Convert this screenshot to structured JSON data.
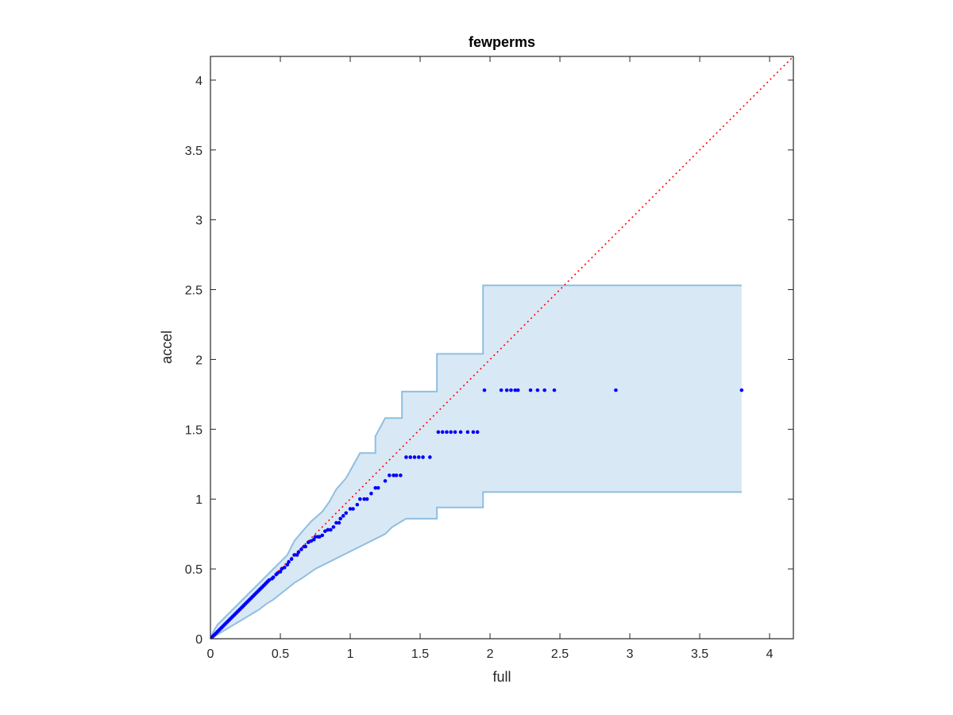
{
  "chart_data": {
    "type": "scatter",
    "title": "fewperms",
    "xlabel": "full",
    "ylabel": "accel",
    "xlim": [
      0,
      4.17
    ],
    "ylim": [
      0,
      4.17
    ],
    "xticks": [
      0,
      0.5,
      1,
      1.5,
      2,
      2.5,
      3,
      3.5,
      4
    ],
    "yticks": [
      0,
      0.5,
      1,
      1.5,
      2,
      2.5,
      3,
      3.5,
      4
    ],
    "xtick_labels": [
      "0",
      "0.5",
      "1",
      "1.5",
      "2",
      "2.5",
      "3",
      "3.5",
      "4"
    ],
    "ytick_labels": [
      "0",
      "0.5",
      "1",
      "1.5",
      "2",
      "2.5",
      "3",
      "3.5",
      "4"
    ],
    "grid": false,
    "colors": {
      "points": "#0000ff",
      "band_fill": "#d9e8f5",
      "band_edge": "#8fbfe0",
      "diagonal": "#ff0000",
      "axes": "#262626"
    },
    "diagonal": {
      "style": "dotted",
      "from": [
        0,
        0
      ],
      "to": [
        4.17,
        4.17
      ]
    },
    "band": {
      "upper": [
        [
          0,
          0
        ],
        [
          0.02,
          0.05
        ],
        [
          0.05,
          0.1
        ],
        [
          0.1,
          0.15
        ],
        [
          0.15,
          0.2
        ],
        [
          0.2,
          0.25
        ],
        [
          0.25,
          0.3
        ],
        [
          0.3,
          0.35
        ],
        [
          0.35,
          0.4
        ],
        [
          0.4,
          0.45
        ],
        [
          0.45,
          0.5
        ],
        [
          0.5,
          0.55
        ],
        [
          0.55,
          0.6
        ],
        [
          0.6,
          0.7
        ],
        [
          0.65,
          0.76
        ],
        [
          0.72,
          0.84
        ],
        [
          0.8,
          0.91
        ],
        [
          0.85,
          0.98
        ],
        [
          0.9,
          1.07
        ],
        [
          0.97,
          1.15
        ],
        [
          1.02,
          1.24
        ],
        [
          1.07,
          1.33
        ],
        [
          1.18,
          1.33
        ],
        [
          1.18,
          1.45
        ],
        [
          1.25,
          1.58
        ],
        [
          1.37,
          1.58
        ],
        [
          1.37,
          1.77
        ],
        [
          1.62,
          1.77
        ],
        [
          1.62,
          2.04
        ],
        [
          1.95,
          2.04
        ],
        [
          1.95,
          2.53
        ],
        [
          3.8,
          2.53
        ]
      ],
      "lower": [
        [
          0,
          0
        ],
        [
          0.05,
          0.03
        ],
        [
          0.1,
          0.06
        ],
        [
          0.15,
          0.09
        ],
        [
          0.2,
          0.12
        ],
        [
          0.25,
          0.15
        ],
        [
          0.3,
          0.18
        ],
        [
          0.35,
          0.21
        ],
        [
          0.4,
          0.25
        ],
        [
          0.45,
          0.28
        ],
        [
          0.5,
          0.32
        ],
        [
          0.55,
          0.36
        ],
        [
          0.6,
          0.4
        ],
        [
          0.65,
          0.43
        ],
        [
          0.75,
          0.5
        ],
        [
          0.85,
          0.55
        ],
        [
          0.95,
          0.6
        ],
        [
          1.05,
          0.65
        ],
        [
          1.15,
          0.7
        ],
        [
          1.25,
          0.75
        ],
        [
          1.3,
          0.8
        ],
        [
          1.4,
          0.86
        ],
        [
          1.62,
          0.86
        ],
        [
          1.62,
          0.94
        ],
        [
          1.95,
          0.94
        ],
        [
          1.95,
          1.05
        ],
        [
          3.8,
          1.05
        ]
      ]
    },
    "series": [
      {
        "points": [
          [
            0.01,
            0.01
          ],
          [
            0.02,
            0.02
          ],
          [
            0.03,
            0.03
          ],
          [
            0.04,
            0.04
          ],
          [
            0.05,
            0.05
          ],
          [
            0.06,
            0.06
          ],
          [
            0.07,
            0.07
          ],
          [
            0.08,
            0.08
          ],
          [
            0.09,
            0.09
          ],
          [
            0.1,
            0.1
          ],
          [
            0.11,
            0.11
          ],
          [
            0.12,
            0.12
          ],
          [
            0.13,
            0.13
          ],
          [
            0.14,
            0.14
          ],
          [
            0.15,
            0.15
          ],
          [
            0.16,
            0.16
          ],
          [
            0.17,
            0.17
          ],
          [
            0.18,
            0.18
          ],
          [
            0.19,
            0.19
          ],
          [
            0.2,
            0.2
          ],
          [
            0.21,
            0.21
          ],
          [
            0.22,
            0.22
          ],
          [
            0.23,
            0.23
          ],
          [
            0.24,
            0.24
          ],
          [
            0.25,
            0.25
          ],
          [
            0.26,
            0.26
          ],
          [
            0.27,
            0.27
          ],
          [
            0.28,
            0.28
          ],
          [
            0.29,
            0.29
          ],
          [
            0.3,
            0.3
          ],
          [
            0.31,
            0.31
          ],
          [
            0.32,
            0.32
          ],
          [
            0.33,
            0.33
          ],
          [
            0.34,
            0.34
          ],
          [
            0.35,
            0.35
          ],
          [
            0.36,
            0.36
          ],
          [
            0.37,
            0.37
          ],
          [
            0.38,
            0.38
          ],
          [
            0.39,
            0.39
          ],
          [
            0.4,
            0.4
          ],
          [
            0.41,
            0.41
          ],
          [
            0.42,
            0.42
          ],
          [
            0.44,
            0.43
          ],
          [
            0.45,
            0.44
          ],
          [
            0.47,
            0.46
          ],
          [
            0.48,
            0.47
          ],
          [
            0.5,
            0.48
          ],
          [
            0.51,
            0.5
          ],
          [
            0.53,
            0.51
          ],
          [
            0.55,
            0.53
          ],
          [
            0.56,
            0.55
          ],
          [
            0.58,
            0.57
          ],
          [
            0.6,
            0.6
          ],
          [
            0.62,
            0.6
          ],
          [
            0.63,
            0.62
          ],
          [
            0.65,
            0.64
          ],
          [
            0.67,
            0.66
          ],
          [
            0.68,
            0.66
          ],
          [
            0.7,
            0.69
          ],
          [
            0.72,
            0.7
          ],
          [
            0.74,
            0.71
          ],
          [
            0.75,
            0.73
          ],
          [
            0.77,
            0.73
          ],
          [
            0.78,
            0.73
          ],
          [
            0.8,
            0.74
          ],
          [
            0.82,
            0.77
          ],
          [
            0.84,
            0.78
          ],
          [
            0.86,
            0.78
          ],
          [
            0.88,
            0.8
          ],
          [
            0.9,
            0.83
          ],
          [
            0.92,
            0.83
          ],
          [
            0.93,
            0.86
          ],
          [
            0.95,
            0.88
          ],
          [
            0.97,
            0.9
          ],
          [
            1.0,
            0.93
          ],
          [
            1.02,
            0.93
          ],
          [
            1.05,
            0.96
          ],
          [
            1.07,
            1.0
          ],
          [
            1.1,
            1.0
          ],
          [
            1.12,
            1.0
          ],
          [
            1.15,
            1.04
          ],
          [
            1.18,
            1.08
          ],
          [
            1.2,
            1.08
          ],
          [
            1.25,
            1.13
          ],
          [
            1.28,
            1.17
          ],
          [
            1.31,
            1.17
          ],
          [
            1.33,
            1.17
          ],
          [
            1.36,
            1.17
          ],
          [
            1.4,
            1.3
          ],
          [
            1.43,
            1.3
          ],
          [
            1.46,
            1.3
          ],
          [
            1.49,
            1.3
          ],
          [
            1.52,
            1.3
          ],
          [
            1.57,
            1.3
          ],
          [
            1.63,
            1.48
          ],
          [
            1.66,
            1.48
          ],
          [
            1.69,
            1.48
          ],
          [
            1.72,
            1.48
          ],
          [
            1.75,
            1.48
          ],
          [
            1.79,
            1.48
          ],
          [
            1.84,
            1.48
          ],
          [
            1.88,
            1.48
          ],
          [
            1.91,
            1.48
          ],
          [
            1.96,
            1.78
          ],
          [
            2.08,
            1.78
          ],
          [
            2.12,
            1.78
          ],
          [
            2.15,
            1.78
          ],
          [
            2.18,
            1.78
          ],
          [
            2.2,
            1.78
          ],
          [
            2.29,
            1.78
          ],
          [
            2.34,
            1.78
          ],
          [
            2.39,
            1.78
          ],
          [
            2.46,
            1.78
          ],
          [
            2.9,
            1.78
          ],
          [
            3.8,
            1.78
          ]
        ]
      }
    ]
  }
}
